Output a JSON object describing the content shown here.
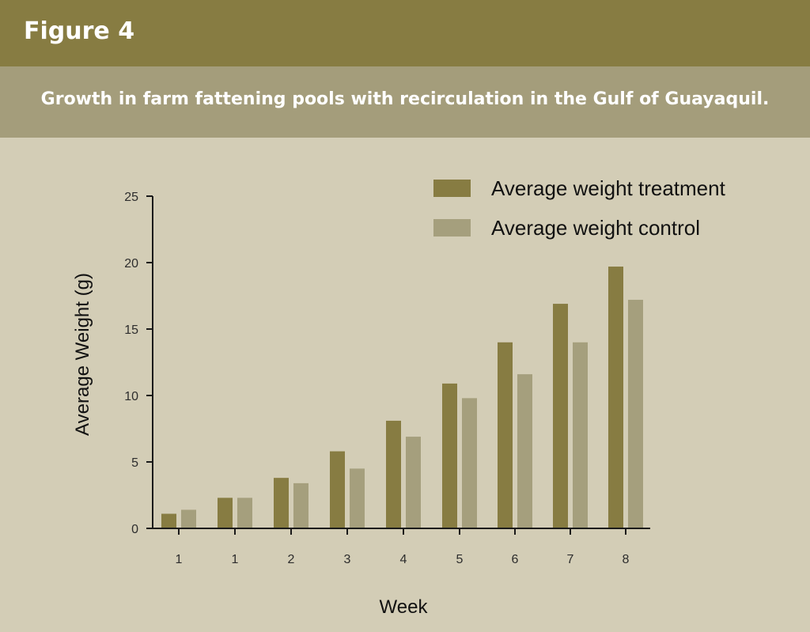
{
  "header": {
    "figure_label": "Figure 4"
  },
  "caption": "Growth in farm fattening pools with recirculation in the Gulf of Guayaquil.",
  "colors": {
    "header_bg": "#877c42",
    "subheader_bg": "#a49d7b",
    "panel_bg": "#d3cdb6",
    "treatment": "#877c42",
    "control": "#a59f7d"
  },
  "chart_data": {
    "type": "bar",
    "categories": [
      "1",
      "1",
      "2",
      "3",
      "4",
      "5",
      "6",
      "7",
      "8"
    ],
    "series": [
      {
        "name": "Average weight treatment",
        "color": "#877c42",
        "values": [
          1.1,
          2.3,
          3.8,
          5.8,
          8.1,
          10.9,
          14.0,
          16.9,
          19.7
        ]
      },
      {
        "name": "Average weight control",
        "color": "#a59f7d",
        "values": [
          1.4,
          2.3,
          3.4,
          4.5,
          6.9,
          9.8,
          11.6,
          14.0,
          17.2
        ]
      }
    ],
    "xlabel": "Week",
    "ylabel": "Average Weight (g)",
    "ylim": [
      0,
      25
    ],
    "yticks": [
      0,
      5,
      10,
      15,
      20,
      25
    ],
    "grid": false,
    "legend_position": "top-right"
  }
}
